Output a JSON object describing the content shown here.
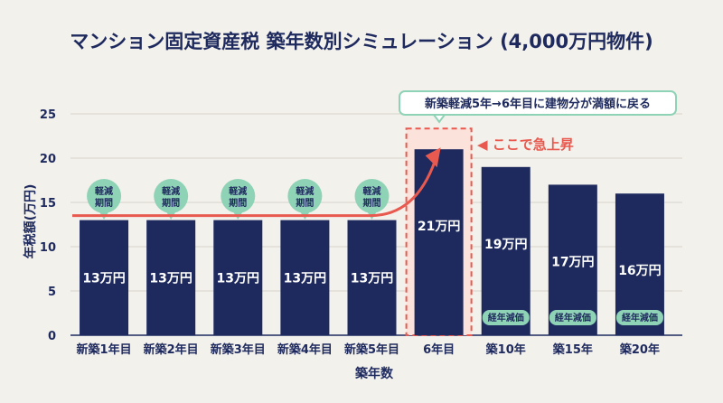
{
  "title": "マンション固定資産税 築年数別シミュレーション (4,000万円物件)",
  "chart_data": {
    "type": "bar",
    "categories": [
      "新築1年目",
      "新築2年目",
      "新築3年目",
      "新築4年目",
      "新築5年目",
      "6年目",
      "築10年",
      "築15年",
      "築20年"
    ],
    "values": [
      13,
      13,
      13,
      13,
      13,
      21,
      19,
      17,
      16
    ],
    "data_labels": [
      "13万円",
      "13万円",
      "13万円",
      "13万円",
      "13万円",
      "21万円",
      "19万円",
      "17万円",
      "16万円"
    ],
    "xlabel": "築年数",
    "ylabel": "年税額(万円)",
    "ylim": [
      0,
      25
    ],
    "yticks": [
      0,
      5,
      10,
      15,
      20,
      25
    ],
    "grid": true,
    "reduction_label": "軽減期間",
    "reduction_count": 5,
    "depreciation_label": "経年減価",
    "depreciation_categories": [
      "築10年",
      "築15年",
      "築20年"
    ],
    "callout": "新築軽減5年→6年目に建物分が満額に戻る",
    "surge_label": "◀ ここで急上昇",
    "colors": {
      "bar": "#1e2a5e",
      "accent": "#e85a4f",
      "badge": "#8fd3b6",
      "background": "#f3f1ec",
      "highlight_fill": "#fbe3dc"
    }
  }
}
